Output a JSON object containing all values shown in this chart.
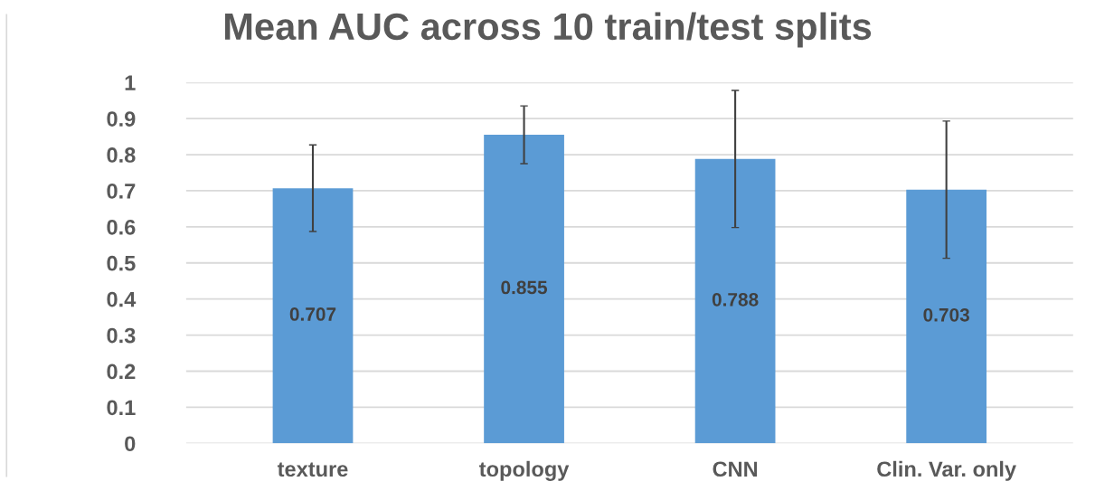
{
  "chart_data": {
    "type": "bar",
    "title": "Mean AUC across 10 train/test splits",
    "categories": [
      "texture",
      "topology",
      "CNN",
      "Clin. Var. only"
    ],
    "values": [
      0.707,
      0.855,
      0.788,
      0.703
    ],
    "errors": [
      0.12,
      0.08,
      0.19,
      0.19
    ],
    "color": "#5b9bd5",
    "data_labels": true,
    "ylim": [
      0,
      1
    ],
    "yticks": [
      0,
      0.1,
      0.2,
      0.3,
      0.4,
      0.5,
      0.6,
      0.7,
      0.8,
      0.9,
      1
    ],
    "grid": "y",
    "legend": false
  }
}
